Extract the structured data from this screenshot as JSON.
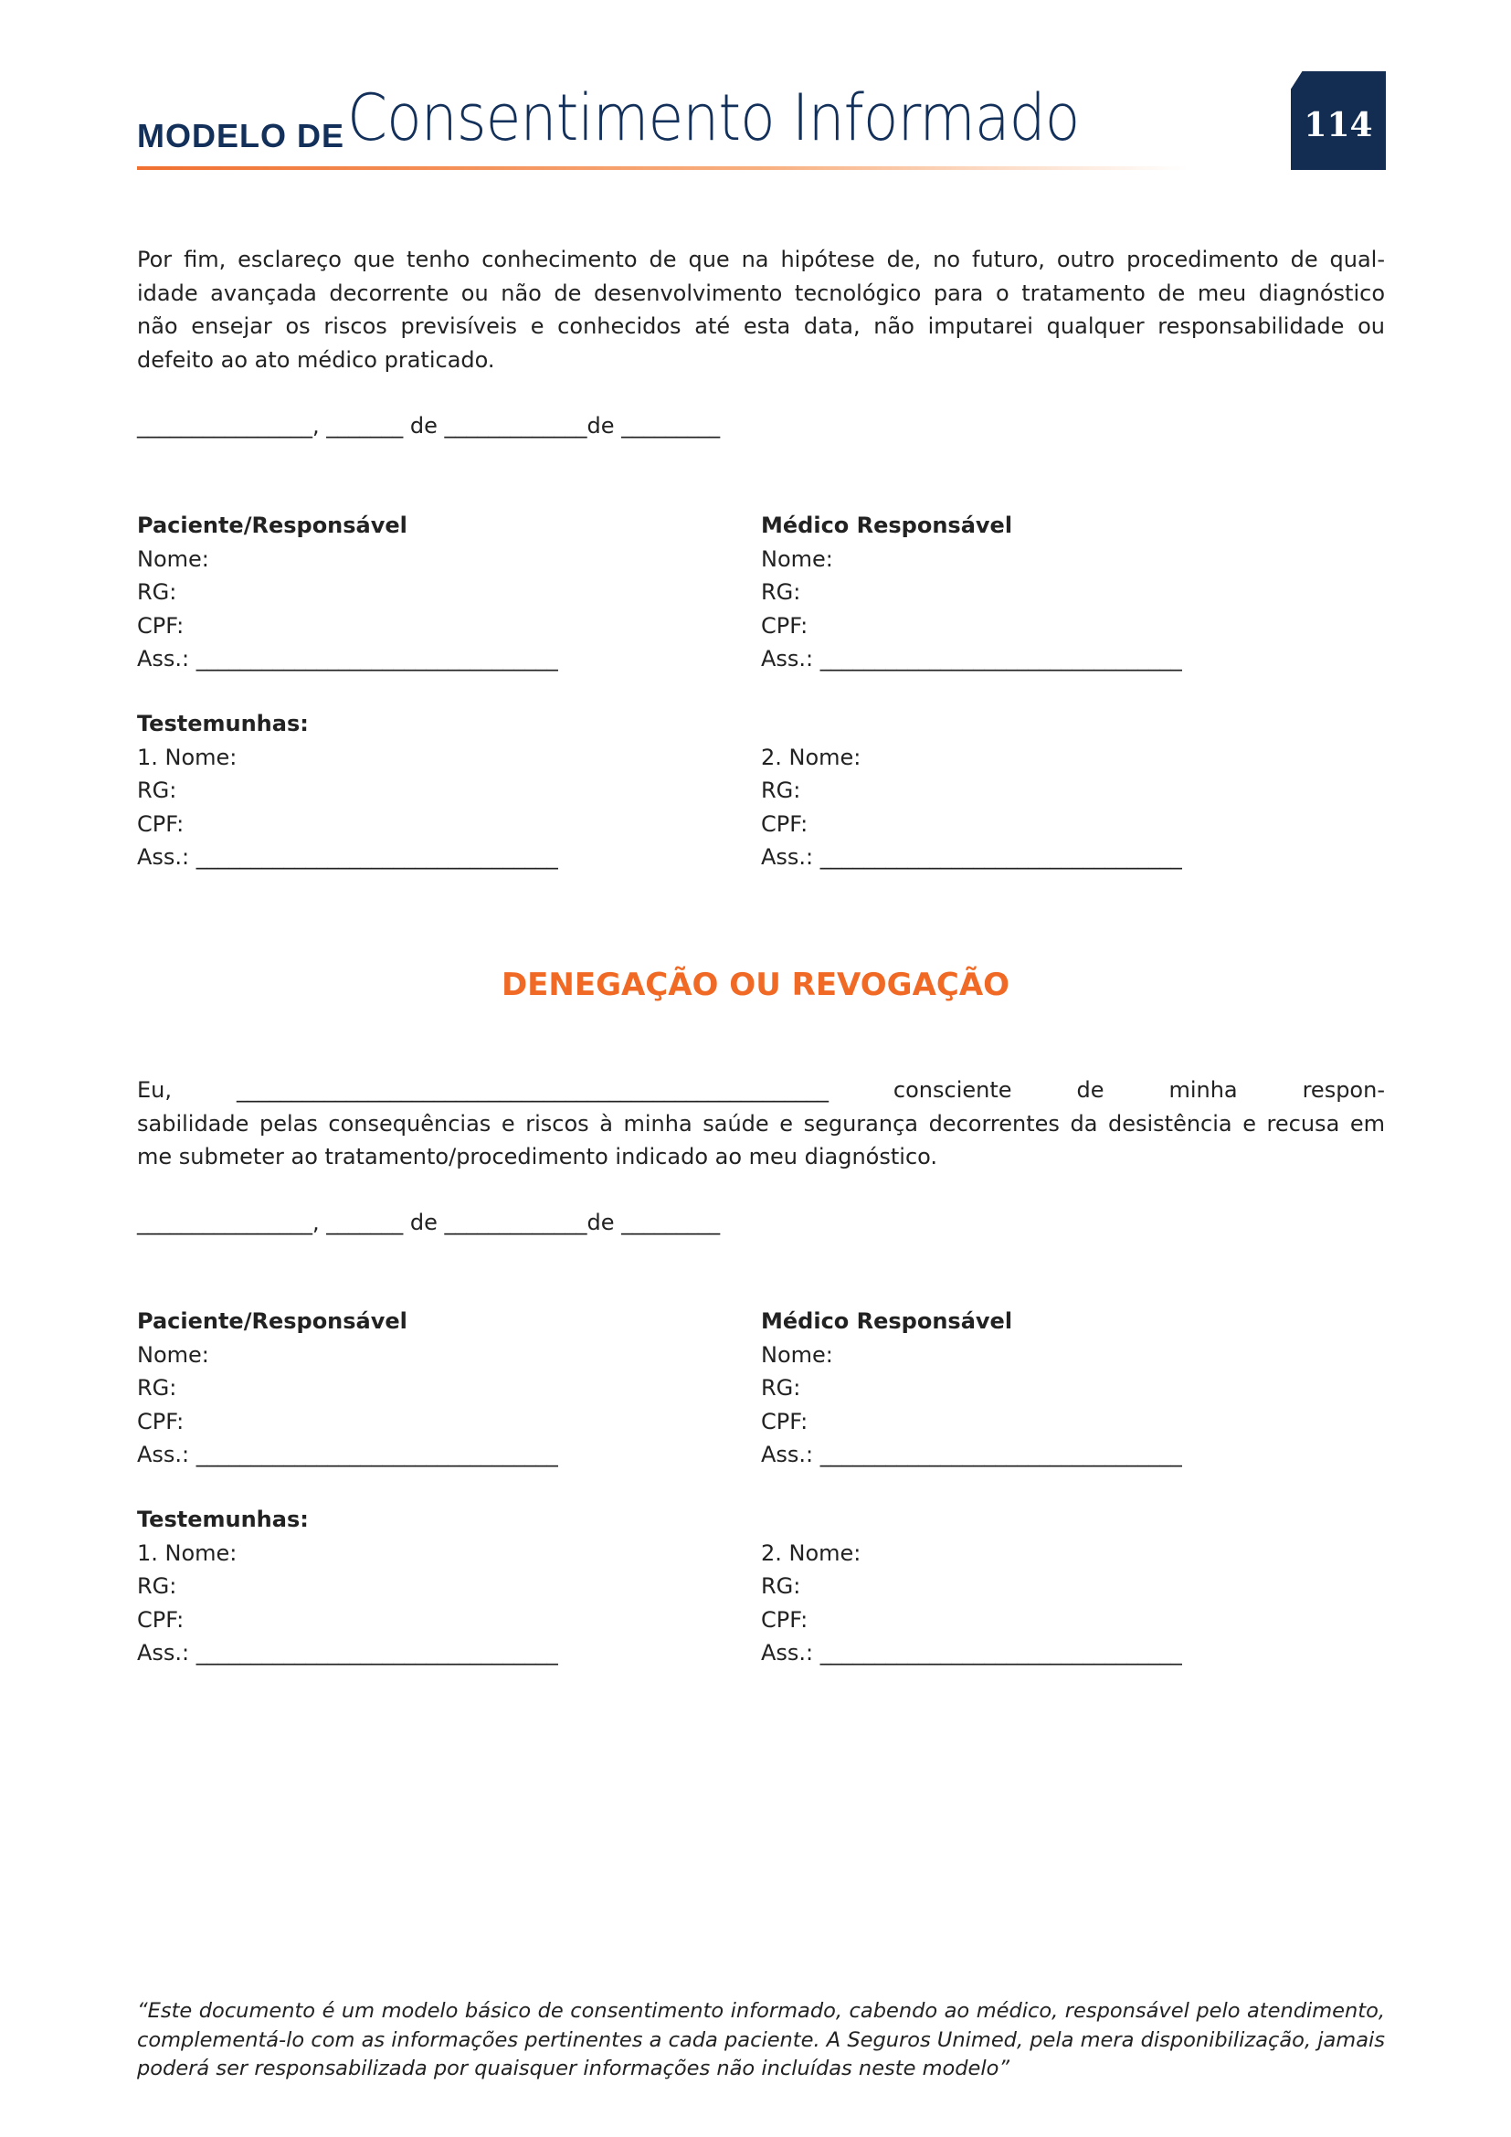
{
  "header": {
    "prefix": "MODELO DE",
    "title": "Consentimento Informado",
    "page_number": "114"
  },
  "colors": {
    "navy": "#122c52",
    "orange": "#f06a25"
  },
  "intro_paragraph": [
    "Por fim, esclareço que tenho conhecimento de que na hipótese de, no futuro, outro procedimento de qual-",
    "idade avançada decorrente ou não de desenvolvimento tecnológico para o tratamento de meu diagnóstico",
    "não ensejar os riscos previsíveis e conhecidos até esta data, não imputarei qualquer responsabilidade ou",
    "defeito ao ato médico praticado."
  ],
  "date_line": "________________, _______ de _____________de _________",
  "signature_block": {
    "patient_title": "Paciente/Responsável",
    "doctor_title": "Médico Responsável",
    "name": "Nome:",
    "rg": "RG:",
    "cpf": "CPF:",
    "sign": "Ass.: _________________________________",
    "witnesses_title": "Testemunhas:",
    "witness1": "1. Nome:",
    "witness2": "2. Nome:"
  },
  "revocation": {
    "title": "DENEGAÇÃO OU REVOGAÇÃO",
    "paragraph": [
      "Eu, ______________________________________________________ consciente de minha respon-",
      "sabilidade pelas consequências e riscos à minha saúde e segurança decorrentes da desistência e recusa em",
      "me submeter ao tratamento/procedimento indicado ao meu diagnóstico."
    ]
  },
  "footer": [
    "“Este documento é um modelo básico de consentimento informado, cabendo ao médico, responsável pelo atendimento,",
    "complementá-lo com as informações pertinentes a cada paciente. A Seguros Unimed, pela mera disponibilização, jamais",
    "poderá ser responsabilizada por quaisquer informações não incluídas neste modelo”"
  ]
}
